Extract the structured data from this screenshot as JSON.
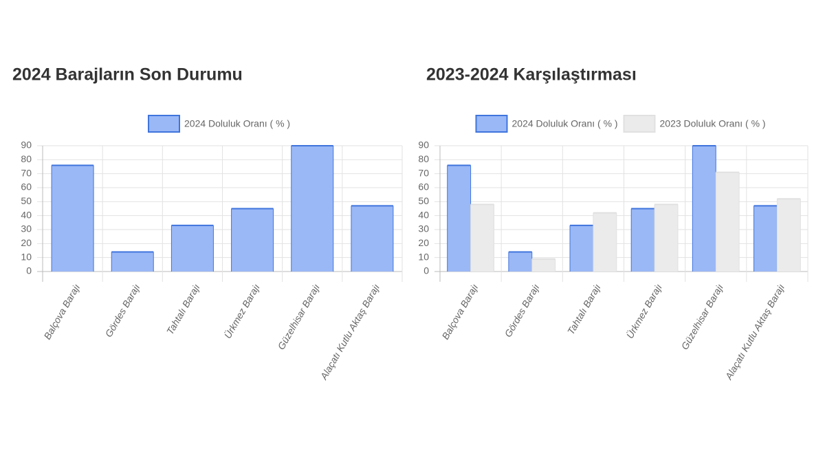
{
  "chart_data": [
    {
      "type": "bar",
      "title": "2024 Barajların Son Durumu",
      "categories": [
        "Balçova Barajı",
        "Gördes Barajı",
        "Tahtalı Barajı",
        "Ürkmez Barajı",
        "Güzelhisar Barajı",
        "Alaçatı Kutlu Aktaş Barajı"
      ],
      "series": [
        {
          "name": "2024 Doluluk Oranı ( % )",
          "color": "#9ab8f6",
          "border_color": "#3f74dd",
          "values": [
            76,
            14,
            33,
            45,
            90,
            47
          ]
        }
      ],
      "ylim": [
        0,
        90
      ],
      "yticks": [
        0,
        10,
        20,
        30,
        40,
        50,
        60,
        70,
        80,
        90
      ],
      "grid": true,
      "legend": "top"
    },
    {
      "type": "bar",
      "title": "2023-2024 Karşılaştırması",
      "categories": [
        "Balçova Barajı",
        "Gördes Barajı",
        "Tahtalı Barajı",
        "Ürkmez Barajı",
        "Güzelhisar Barajı",
        "Alaçatı Kutlu Aktaş Barajı"
      ],
      "series": [
        {
          "name": "2024 Doluluk Oranı ( % )",
          "color": "#9ab8f6",
          "border_color": "#3f74dd",
          "values": [
            76,
            14,
            33,
            45,
            90,
            47
          ]
        },
        {
          "name": "2023 Doluluk Oranı ( % )",
          "color": "#ebebeb",
          "border_color": "#e0e0e0",
          "values": [
            48,
            9,
            42,
            48,
            71,
            52
          ]
        }
      ],
      "ylim": [
        0,
        90
      ],
      "yticks": [
        0,
        10,
        20,
        30,
        40,
        50,
        60,
        70,
        80,
        90
      ],
      "grid": true,
      "legend": "top"
    }
  ]
}
